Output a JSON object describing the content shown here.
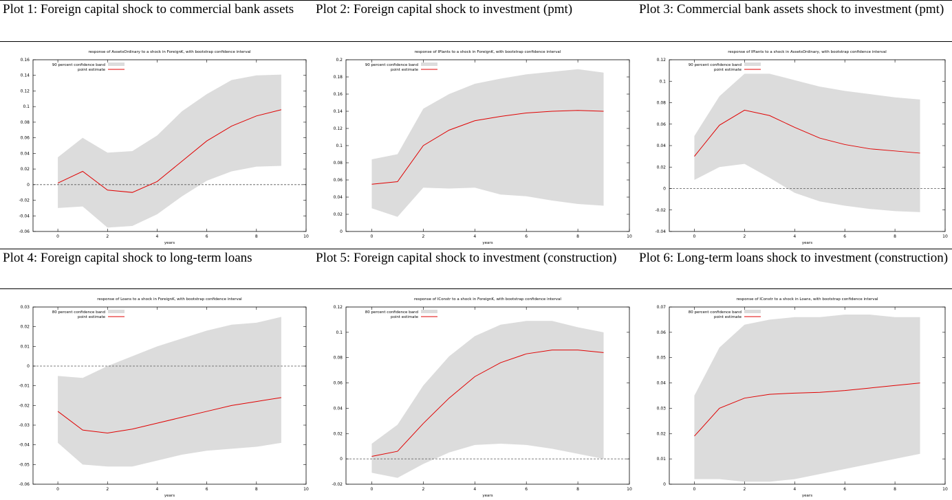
{
  "captions": [
    "Plot 1: Foreign capital shock to commercial bank assets",
    "Plot 2: Foreign capital shock to investment (pmt)",
    "Plot 3: Commercial bank assets shock to investment (pmt)",
    "Plot 4: Foreign capital shock to long-term loans",
    "Plot 5: Foreign capital shock to investment (construction)",
    "Plot 6: Long-term loans  shock to investment (construction)"
  ],
  "chart_data": [
    {
      "type": "line",
      "title": "response of AssetsOrdinary to a shock in ForeignK, with bootstrap confidence interval",
      "x_label": "years",
      "legend": "upper-left",
      "x": [
        0,
        1,
        2,
        3,
        4,
        5,
        6,
        7,
        8,
        9
      ],
      "xlim": [
        -1,
        10
      ],
      "xticks": [
        0,
        2,
        4,
        6,
        8,
        10
      ],
      "ylim": [
        -0.06,
        0.16
      ],
      "yticks": [
        -0.06,
        -0.04,
        -0.02,
        0,
        0.02,
        0.04,
        0.06,
        0.08,
        0.1,
        0.12,
        0.14,
        0.16
      ],
      "series": [
        {
          "name": "90 percent confidence band",
          "color": "#dcdcdc",
          "lower": [
            -0.03,
            -0.028,
            -0.055,
            -0.053,
            -0.038,
            -0.015,
            0.005,
            0.017,
            0.023,
            0.024
          ],
          "upper": [
            0.035,
            0.06,
            0.041,
            0.043,
            0.063,
            0.094,
            0.116,
            0.134,
            0.14,
            0.141
          ]
        },
        {
          "name": "point estimate",
          "color": "#e00000",
          "values": [
            0.002,
            0.017,
            -0.007,
            -0.01,
            0.004,
            0.03,
            0.056,
            0.075,
            0.088,
            0.096
          ]
        }
      ]
    },
    {
      "type": "line",
      "title": "response of IPlants to a shock in ForeignK, with bootstrap confidence interval",
      "x_label": "years",
      "legend": "upper-left",
      "x": [
        0,
        1,
        2,
        3,
        4,
        5,
        6,
        7,
        8,
        9
      ],
      "xlim": [
        -1,
        10
      ],
      "xticks": [
        0,
        2,
        4,
        6,
        8,
        10
      ],
      "ylim": [
        0,
        0.2
      ],
      "yticks": [
        0,
        0.02,
        0.04,
        0.06,
        0.08,
        0.1,
        0.12,
        0.14,
        0.16,
        0.18,
        0.2
      ],
      "series": [
        {
          "name": "90 percent confidence band",
          "color": "#dcdcdc",
          "lower": [
            0.027,
            0.017,
            0.051,
            0.05,
            0.051,
            0.043,
            0.041,
            0.036,
            0.032,
            0.03
          ],
          "upper": [
            0.084,
            0.09,
            0.143,
            0.16,
            0.172,
            0.178,
            0.183,
            0.186,
            0.189,
            0.185
          ]
        },
        {
          "name": "point estimate",
          "color": "#e00000",
          "values": [
            0.055,
            0.058,
            0.1,
            0.118,
            0.129,
            0.134,
            0.138,
            0.14,
            0.141,
            0.14
          ]
        }
      ]
    },
    {
      "type": "line",
      "title": "response of IPlants to a shock in AssetsOrdinary, with bootstrap confidence interval",
      "x_label": "years",
      "legend": "upper-left",
      "x": [
        0,
        1,
        2,
        3,
        4,
        5,
        6,
        7,
        8,
        9
      ],
      "xlim": [
        -1,
        10
      ],
      "xticks": [
        0,
        2,
        4,
        6,
        8,
        10
      ],
      "ylim": [
        -0.04,
        0.12
      ],
      "yticks": [
        -0.04,
        -0.02,
        0,
        0.02,
        0.04,
        0.06,
        0.08,
        0.1,
        0.12
      ],
      "series": [
        {
          "name": "90 percent confidence band",
          "color": "#dcdcdc",
          "lower": [
            0.008,
            0.02,
            0.023,
            0.01,
            -0.004,
            -0.012,
            -0.016,
            -0.019,
            -0.021,
            -0.022
          ],
          "upper": [
            0.049,
            0.086,
            0.107,
            0.107,
            0.101,
            0.095,
            0.091,
            0.088,
            0.085,
            0.083
          ]
        },
        {
          "name": "point estimate",
          "color": "#e00000",
          "values": [
            0.03,
            0.059,
            0.073,
            0.068,
            0.057,
            0.047,
            0.041,
            0.037,
            0.035,
            0.033
          ]
        }
      ]
    },
    {
      "type": "line",
      "title": "response of Loans to a shock in ForeignK, with bootstrap confidence interval",
      "x_label": "years",
      "legend": "upper-left",
      "x": [
        0,
        1,
        2,
        3,
        4,
        5,
        6,
        7,
        8,
        9
      ],
      "xlim": [
        -1,
        10
      ],
      "xticks": [
        0,
        2,
        4,
        6,
        8,
        10
      ],
      "ylim": [
        -0.06,
        0.03
      ],
      "yticks": [
        -0.06,
        -0.05,
        -0.04,
        -0.03,
        -0.02,
        -0.01,
        0,
        0.01,
        0.02,
        0.03
      ],
      "series": [
        {
          "name": "80 percent confidence band",
          "color": "#dcdcdc",
          "lower": [
            -0.039,
            -0.05,
            -0.051,
            -0.051,
            -0.048,
            -0.045,
            -0.043,
            -0.042,
            -0.041,
            -0.039
          ],
          "upper": [
            -0.005,
            -0.006,
            0.0,
            0.005,
            0.01,
            0.014,
            0.018,
            0.021,
            0.022,
            0.025
          ]
        },
        {
          "name": "point estimate",
          "color": "#e00000",
          "values": [
            -0.023,
            -0.0325,
            -0.034,
            -0.032,
            -0.029,
            -0.026,
            -0.023,
            -0.02,
            -0.018,
            -0.016
          ]
        }
      ]
    },
    {
      "type": "line",
      "title": "response of IConstr to a shock in ForeignK, with bootstrap confidence interval",
      "x_label": "years",
      "legend": "upper-left",
      "x": [
        0,
        1,
        2,
        3,
        4,
        5,
        6,
        7,
        8,
        9
      ],
      "xlim": [
        -1,
        10
      ],
      "xticks": [
        0,
        2,
        4,
        6,
        8,
        10
      ],
      "ylim": [
        -0.02,
        0.12
      ],
      "yticks": [
        -0.02,
        0,
        0.02,
        0.04,
        0.06,
        0.08,
        0.1,
        0.12
      ],
      "series": [
        {
          "name": "80 percent confidence band",
          "color": "#dcdcdc",
          "lower": [
            -0.011,
            -0.015,
            -0.004,
            0.005,
            0.011,
            0.012,
            0.011,
            0.008,
            0.004,
            0.0
          ],
          "upper": [
            0.012,
            0.027,
            0.058,
            0.081,
            0.097,
            0.106,
            0.109,
            0.109,
            0.104,
            0.1
          ]
        },
        {
          "name": "point estimate",
          "color": "#e00000",
          "values": [
            0.002,
            0.006,
            0.028,
            0.048,
            0.065,
            0.076,
            0.083,
            0.086,
            0.086,
            0.084
          ]
        }
      ]
    },
    {
      "type": "line",
      "title": "response of IConstr to a shock in Loans, with bootstrap confidence interval",
      "x_label": "years",
      "legend": "upper-left",
      "x": [
        0,
        1,
        2,
        3,
        4,
        5,
        6,
        7,
        8,
        9
      ],
      "xlim": [
        -1,
        10
      ],
      "xticks": [
        0,
        2,
        4,
        6,
        8,
        10
      ],
      "ylim": [
        0,
        0.07
      ],
      "yticks": [
        0,
        0.01,
        0.02,
        0.03,
        0.04,
        0.05,
        0.06,
        0.07
      ],
      "series": [
        {
          "name": "80 percent confidence band",
          "color": "#dcdcdc",
          "lower": [
            0.002,
            0.002,
            0.001,
            0.001,
            0.002,
            0.004,
            0.006,
            0.008,
            0.01,
            0.012
          ],
          "upper": [
            0.035,
            0.054,
            0.063,
            0.065,
            0.066,
            0.066,
            0.067,
            0.067,
            0.066,
            0.066
          ]
        },
        {
          "name": "point estimate",
          "color": "#e00000",
          "values": [
            0.019,
            0.03,
            0.034,
            0.0355,
            0.036,
            0.0363,
            0.037,
            0.038,
            0.039,
            0.04
          ]
        }
      ]
    }
  ]
}
